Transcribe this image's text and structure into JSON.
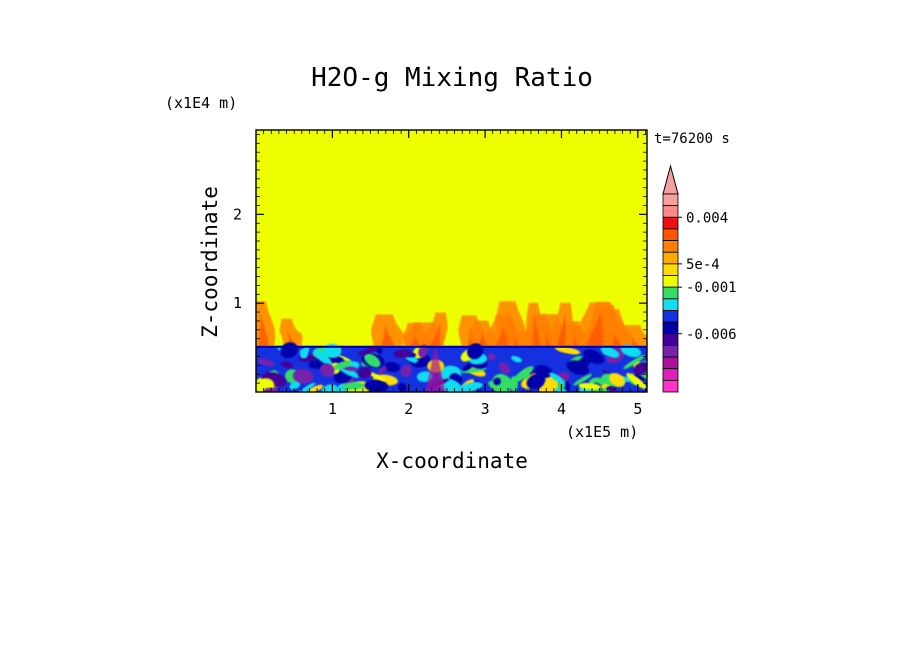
{
  "chart_data": {
    "type": "heatmap",
    "title": "H2O-g Mixing Ratio",
    "xlabel": "X-coordinate",
    "ylabel": "Z-coordinate",
    "x_unit": "(x1E5 m)",
    "y_unit": "(x1E4 m)",
    "time_label": "t=76200 s",
    "xlim": [
      0,
      5.12
    ],
    "ylim": [
      0,
      2.95
    ],
    "x_ticks": [
      1,
      2,
      3,
      4,
      5
    ],
    "y_ticks": [
      1,
      2
    ],
    "grid": false,
    "field_description": {
      "upper_layer": {
        "z_range": [
          0.52,
          2.95
        ],
        "level_color": "#eeff00",
        "plume_top_z": 1.05
      },
      "lower_layer": {
        "z_range": [
          0,
          0.52
        ],
        "boundary_color": "#1530e0"
      }
    },
    "colorbar": {
      "labels": [
        "0.004",
        "5e-4",
        "-0.001",
        "-0.006"
      ],
      "label_levels": [
        2,
        6,
        8,
        12
      ],
      "levels_top_to_bottom": [
        "#f5a0a0",
        "#ff8888",
        "#ee1111",
        "#ff5500",
        "#ff8000",
        "#ffaa00",
        "#ffdd00",
        "#eeff00",
        "#33dd66",
        "#11ddee",
        "#1530e0",
        "#0000aa",
        "#440099",
        "#7722aa",
        "#aa1199",
        "#dd22bb",
        "#ff33cc"
      ],
      "extend": "max"
    }
  }
}
